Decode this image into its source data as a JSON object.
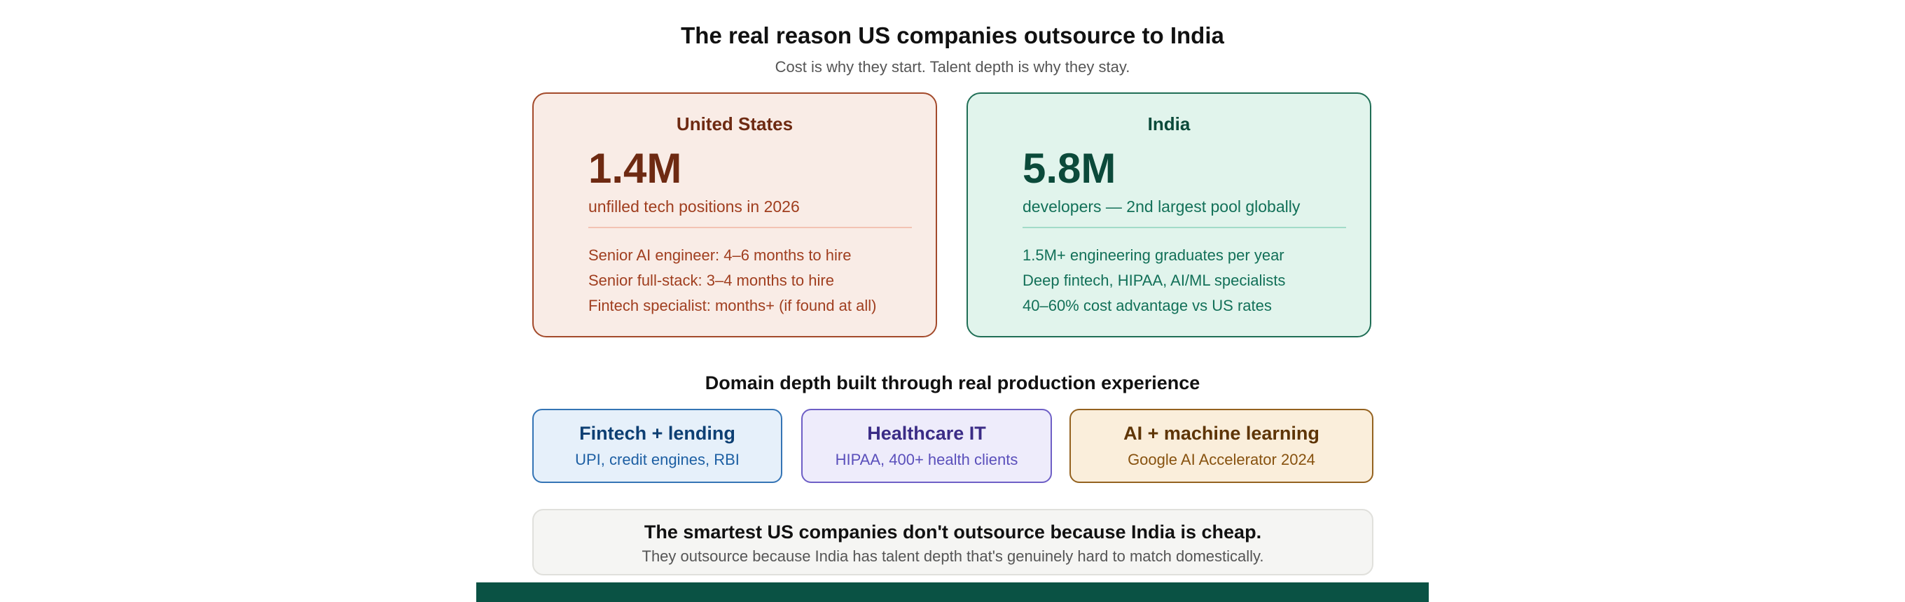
{
  "header": {
    "title": "The real reason US companies outsource to India",
    "subtitle": "Cost is why they start. Talent depth is why they stay."
  },
  "comparison": [
    {
      "country": "United States",
      "stat": "1.4M",
      "stat_label": "unfilled tech positions in 2026",
      "points": [
        "Senior AI engineer: 4–6 months to hire",
        "Senior full-stack: 3–4 months to hire",
        "Fintech specialist: months+ (if found at all)"
      ],
      "color": "#a34a2b"
    },
    {
      "country": "India",
      "stat": "5.8M",
      "stat_label": "developers — 2nd largest pool globally",
      "points": [
        "1.5M+ engineering graduates per year",
        "Deep fintech, HIPAA, AI/ML specialists",
        "40–60% cost advantage vs US rates"
      ],
      "color": "#1f6e55"
    }
  ],
  "domains": {
    "heading": "Domain depth built through real production experience",
    "items": [
      {
        "title": "Fintech + lending",
        "detail": "UPI, credit engines, RBI",
        "color": "#3474b5"
      },
      {
        "title": "Healthcare IT",
        "detail": "HIPAA, 400+ health clients",
        "color": "#6e5fc6"
      },
      {
        "title": "AI + machine learning",
        "detail": "Google AI Accelerator 2024",
        "color": "#94621f"
      }
    ]
  },
  "callout": {
    "headline": "The smartest US companies don't outsource because India is cheap.",
    "body": "They outsource because India has talent depth that's genuinely hard to match domestically."
  },
  "footer_bar": {
    "color": "#0a5244"
  }
}
